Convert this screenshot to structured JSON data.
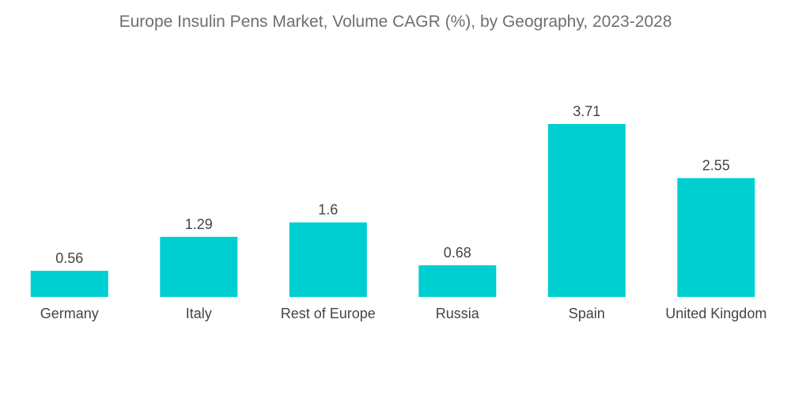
{
  "chart_data": {
    "type": "bar",
    "title": "Europe Insulin Pens Market, Volume CAGR (%), by Geography, 2023-2028",
    "categories": [
      "Germany",
      "Italy",
      "Rest of Europe",
      "Russia",
      "Spain",
      "United Kingdom"
    ],
    "values": [
      0.56,
      1.29,
      1.6,
      0.68,
      3.71,
      2.55
    ],
    "value_labels": [
      "0.56",
      "1.29",
      "1.6",
      "0.68",
      "3.71",
      "2.55"
    ],
    "xlabel": "",
    "ylabel": "",
    "ylim": [
      0,
      3.71
    ],
    "grid": false,
    "legend": "none",
    "bar_color": "#00cfd1"
  }
}
